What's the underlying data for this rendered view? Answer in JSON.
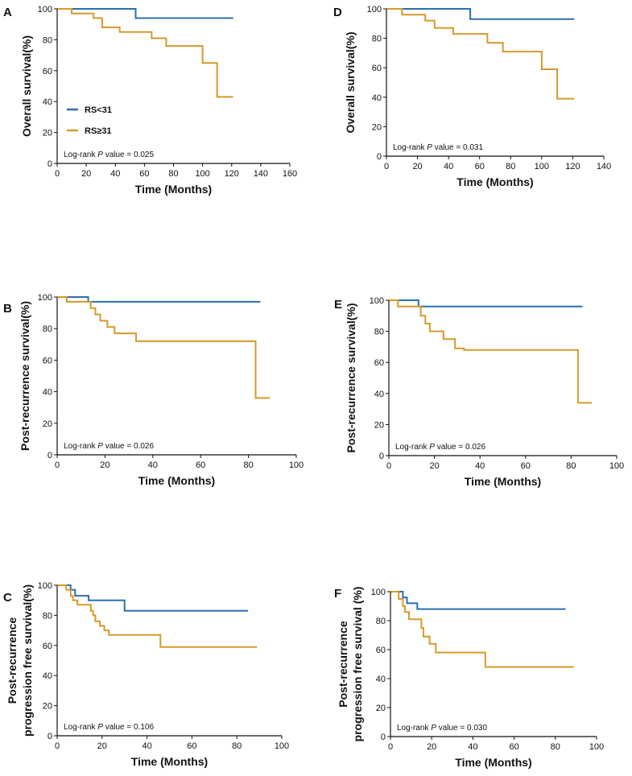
{
  "colors": {
    "blue": "#2b6fb0",
    "orange": "#d69a2b",
    "axis": "#111111"
  },
  "legend": [
    {
      "name": "RS<31",
      "color": "#2b6fb0"
    },
    {
      "name": "RS≥31",
      "color": "#d69a2b"
    }
  ],
  "chart_data": [
    {
      "panel": "A",
      "type": "line",
      "step": true,
      "xlabel": "Time (Months)",
      "ylabel": "Overall survival(%)",
      "xlim": [
        0,
        160
      ],
      "ylim": [
        0,
        100
      ],
      "xticks": [
        "0",
        "20",
        "40",
        "60",
        "80",
        "100",
        "120",
        "140",
        "160"
      ],
      "yticks": [
        "0",
        "20",
        "40",
        "60",
        "80",
        "100"
      ],
      "annotation": {
        "prefix": "Log-rank ",
        "italic": "P",
        "suffix": " value = 0.025"
      },
      "show_legend": true,
      "series": [
        {
          "name": "RS<31",
          "color": "#2b6fb0",
          "points": [
            [
              0,
              100
            ],
            [
              54,
              100
            ],
            [
              54,
              94
            ],
            [
              121,
              94
            ]
          ]
        },
        {
          "name": "RS≥31",
          "color": "#d69a2b",
          "points": [
            [
              0,
              100
            ],
            [
              10,
              100
            ],
            [
              10,
              97
            ],
            [
              25,
              97
            ],
            [
              25,
              94
            ],
            [
              31,
              94
            ],
            [
              31,
              88
            ],
            [
              43,
              88
            ],
            [
              43,
              85
            ],
            [
              65,
              85
            ],
            [
              65,
              81
            ],
            [
              75,
              81
            ],
            [
              75,
              76
            ],
            [
              100,
              76
            ],
            [
              100,
              65
            ],
            [
              110,
              65
            ],
            [
              110,
              43
            ],
            [
              121,
              43
            ]
          ]
        }
      ]
    },
    {
      "panel": "D",
      "type": "line",
      "step": true,
      "xlabel": "Time (Months)",
      "ylabel": "Overall survival(%)",
      "xlim": [
        0,
        140
      ],
      "ylim": [
        0,
        100
      ],
      "xticks": [
        "0",
        "20",
        "40",
        "60",
        "80",
        "100",
        "120",
        "140"
      ],
      "yticks": [
        "0",
        "20",
        "40",
        "60",
        "80",
        "100"
      ],
      "annotation": {
        "prefix": "Log-rank ",
        "italic": "P",
        "suffix": " value = 0.031"
      },
      "show_legend": false,
      "series": [
        {
          "name": "RS<31",
          "color": "#2b6fb0",
          "points": [
            [
              0,
              100
            ],
            [
              54,
              100
            ],
            [
              54,
              93
            ],
            [
              121,
              93
            ]
          ]
        },
        {
          "name": "RS≥31",
          "color": "#d69a2b",
          "points": [
            [
              0,
              100
            ],
            [
              10,
              100
            ],
            [
              10,
              96
            ],
            [
              25,
              96
            ],
            [
              25,
              92
            ],
            [
              31,
              92
            ],
            [
              31,
              87
            ],
            [
              43,
              87
            ],
            [
              43,
              83
            ],
            [
              65,
              83
            ],
            [
              65,
              77
            ],
            [
              75,
              77
            ],
            [
              75,
              71
            ],
            [
              100,
              71
            ],
            [
              100,
              59
            ],
            [
              110,
              59
            ],
            [
              110,
              39
            ],
            [
              121,
              39
            ]
          ]
        }
      ]
    },
    {
      "panel": "B",
      "type": "line",
      "step": true,
      "xlabel": "Time (Months)",
      "ylabel": "Post-recurrence survival(%)",
      "xlim": [
        0,
        100
      ],
      "ylim": [
        0,
        100
      ],
      "xticks": [
        "0",
        "20",
        "40",
        "60",
        "80",
        "100"
      ],
      "yticks": [
        "0",
        "20",
        "40",
        "60",
        "80",
        "100"
      ],
      "annotation": {
        "prefix": "Log-rank ",
        "italic": "P",
        "suffix": " value = 0.026"
      },
      "show_legend": false,
      "series": [
        {
          "name": "RS<31",
          "color": "#2b6fb0",
          "points": [
            [
              0,
              100
            ],
            [
              13,
              100
            ],
            [
              13,
              97
            ],
            [
              85,
              97
            ]
          ]
        },
        {
          "name": "RS≥31",
          "color": "#d69a2b",
          "points": [
            [
              0,
              100
            ],
            [
              4,
              100
            ],
            [
              4,
              97
            ],
            [
              14,
              97
            ],
            [
              14,
              93
            ],
            [
              16,
              93
            ],
            [
              16,
              89
            ],
            [
              18,
              89
            ],
            [
              18,
              85
            ],
            [
              21,
              85
            ],
            [
              21,
              81
            ],
            [
              24,
              81
            ],
            [
              24,
              77
            ],
            [
              33,
              77
            ],
            [
              33,
              72
            ],
            [
              83,
              72
            ],
            [
              83,
              36
            ],
            [
              89,
              36
            ]
          ]
        }
      ]
    },
    {
      "panel": "E",
      "type": "line",
      "step": true,
      "xlabel": "Time (Months)",
      "ylabel": "Post-recurrence survival(%)",
      "xlim": [
        0,
        100
      ],
      "ylim": [
        0,
        100
      ],
      "xticks": [
        "0",
        "20",
        "40",
        "60",
        "80",
        "100"
      ],
      "yticks": [
        "0",
        "20",
        "40",
        "60",
        "80",
        "100"
      ],
      "annotation": {
        "prefix": "Log-rank ",
        "italic": "P",
        "suffix": " value = 0.026"
      },
      "show_legend": false,
      "series": [
        {
          "name": "RS<31",
          "color": "#2b6fb0",
          "points": [
            [
              0,
              100
            ],
            [
              13,
              100
            ],
            [
              13,
              96
            ],
            [
              85,
              96
            ]
          ]
        },
        {
          "name": "RS≥31",
          "color": "#d69a2b",
          "points": [
            [
              0,
              100
            ],
            [
              4,
              100
            ],
            [
              4,
              96
            ],
            [
              14,
              96
            ],
            [
              14,
              90
            ],
            [
              16,
              90
            ],
            [
              16,
              85
            ],
            [
              18,
              85
            ],
            [
              18,
              80
            ],
            [
              24,
              80
            ],
            [
              24,
              75
            ],
            [
              29,
              75
            ],
            [
              29,
              69
            ],
            [
              33,
              69
            ],
            [
              33,
              68
            ],
            [
              83,
              68
            ],
            [
              83,
              34
            ],
            [
              89,
              34
            ]
          ]
        }
      ]
    },
    {
      "panel": "C",
      "type": "line",
      "step": true,
      "xlabel": "Time (Months)",
      "ylabel": [
        "Post-recurrence",
        "progression free survival(%)"
      ],
      "xlim": [
        0,
        100
      ],
      "ylim": [
        0,
        100
      ],
      "xticks": [
        "0",
        "20",
        "40",
        "60",
        "80",
        "100"
      ],
      "yticks": [
        "0",
        "20",
        "40",
        "60",
        "80",
        "100"
      ],
      "annotation": {
        "prefix": "Log-rank ",
        "italic": "P",
        "suffix": " value = 0.106"
      },
      "show_legend": false,
      "series": [
        {
          "name": "RS<31",
          "color": "#2b6fb0",
          "points": [
            [
              0,
              100
            ],
            [
              6,
              100
            ],
            [
              6,
              97
            ],
            [
              8,
              97
            ],
            [
              8,
              93
            ],
            [
              14,
              93
            ],
            [
              14,
              90
            ],
            [
              30,
              90
            ],
            [
              30,
              83
            ],
            [
              85,
              83
            ]
          ]
        },
        {
          "name": "RS≥31",
          "color": "#d69a2b",
          "points": [
            [
              0,
              100
            ],
            [
              4,
              100
            ],
            [
              4,
              97
            ],
            [
              6,
              97
            ],
            [
              6,
              93
            ],
            [
              7,
              93
            ],
            [
              7,
              90
            ],
            [
              9,
              90
            ],
            [
              9,
              87
            ],
            [
              15,
              87
            ],
            [
              15,
              83
            ],
            [
              16,
              83
            ],
            [
              16,
              80
            ],
            [
              17,
              80
            ],
            [
              17,
              76
            ],
            [
              19,
              76
            ],
            [
              19,
              73
            ],
            [
              21,
              73
            ],
            [
              21,
              70
            ],
            [
              23,
              70
            ],
            [
              23,
              67
            ],
            [
              46,
              67
            ],
            [
              46,
              59
            ],
            [
              89,
              59
            ]
          ]
        }
      ]
    },
    {
      "panel": "F",
      "type": "line",
      "step": true,
      "xlabel": "Time (Months)",
      "ylabel": [
        "Post-recurrence",
        "progression free survival (%)"
      ],
      "xlim": [
        0,
        100
      ],
      "ylim": [
        0,
        100
      ],
      "xticks": [
        "0",
        "20",
        "40",
        "60",
        "80",
        "100"
      ],
      "yticks": [
        "0",
        "20",
        "40",
        "60",
        "80",
        "100"
      ],
      "annotation": {
        "prefix": "Log-rank ",
        "italic": "P",
        "suffix": " value = 0.030"
      },
      "show_legend": false,
      "series": [
        {
          "name": "RS<31",
          "color": "#2b6fb0",
          "points": [
            [
              0,
              100
            ],
            [
              6,
              100
            ],
            [
              6,
              96
            ],
            [
              8,
              96
            ],
            [
              8,
              92
            ],
            [
              13,
              92
            ],
            [
              13,
              88
            ],
            [
              85,
              88
            ]
          ]
        },
        {
          "name": "RS≥31",
          "color": "#d69a2b",
          "points": [
            [
              0,
              100
            ],
            [
              4,
              100
            ],
            [
              4,
              95
            ],
            [
              6,
              95
            ],
            [
              6,
              90
            ],
            [
              7,
              90
            ],
            [
              7,
              86
            ],
            [
              9,
              86
            ],
            [
              9,
              81
            ],
            [
              15,
              81
            ],
            [
              15,
              75
            ],
            [
              16,
              75
            ],
            [
              16,
              69
            ],
            [
              19,
              69
            ],
            [
              19,
              64
            ],
            [
              22,
              64
            ],
            [
              22,
              58
            ],
            [
              46,
              58
            ],
            [
              46,
              48
            ],
            [
              89,
              48
            ]
          ]
        }
      ]
    }
  ]
}
